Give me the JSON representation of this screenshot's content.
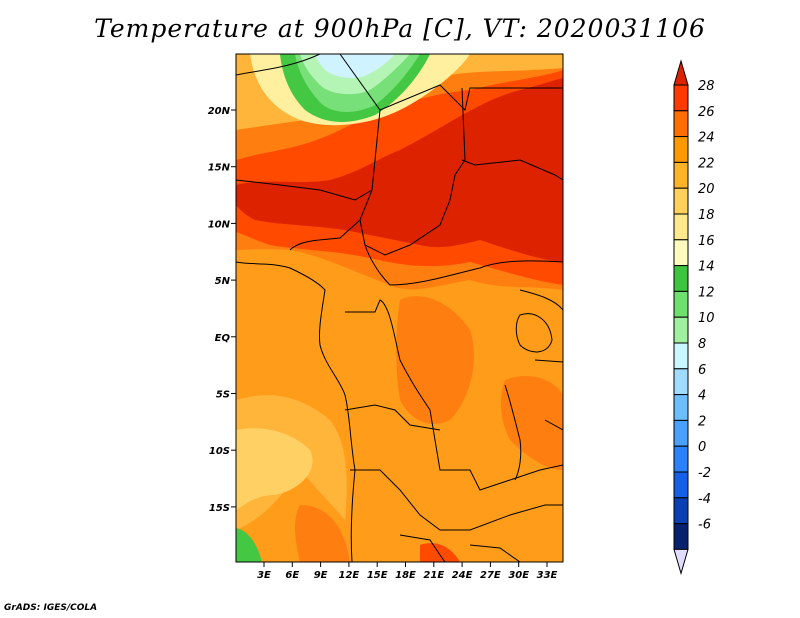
{
  "title": "Temperature at 900hPa [C], VT: 2020031106",
  "footer": "GrADS: IGES/COLA",
  "map": {
    "lon_ticks": [
      "3E",
      "6E",
      "9E",
      "12E",
      "15E",
      "18E",
      "21E",
      "24E",
      "27E",
      "30E",
      "33E"
    ],
    "lat_ticks": [
      "20N",
      "15N",
      "10N",
      "5N",
      "EQ",
      "5S",
      "10S",
      "15S"
    ]
  },
  "colorbar": {
    "labels": [
      "28",
      "26",
      "24",
      "22",
      "20",
      "18",
      "16",
      "14",
      "12",
      "10",
      "8",
      "6",
      "4",
      "2",
      "0",
      "-2",
      "-4",
      "-6"
    ],
    "colors": [
      "#ff3a00",
      "#ff6e00",
      "#ff9900",
      "#ffb428",
      "#ffd05a",
      "#ffe98c",
      "#fffbbe",
      "#3ec53e",
      "#6ee06e",
      "#a0f0a0",
      "#c8f7ff",
      "#a0dcff",
      "#6cbeff",
      "#4aa0ff",
      "#2a82ff",
      "#1460e6",
      "#0a40b4",
      "#06226e"
    ],
    "over_color": "#dd2200",
    "under_color": "#e0dcff"
  },
  "field": {
    "colors": {
      "t28": "#dd2200",
      "t26": "#ff4a00",
      "t24": "#ff7e10",
      "t22": "#ff9c1a",
      "t20": "#ffb43a",
      "t18": "#ffd064",
      "t16": "#fff0a0",
      "t14": "#44c844",
      "t12": "#78e078",
      "t10": "#b4f4b4",
      "t8": "#cff3ff",
      "t6": "#9fd3ff"
    }
  }
}
